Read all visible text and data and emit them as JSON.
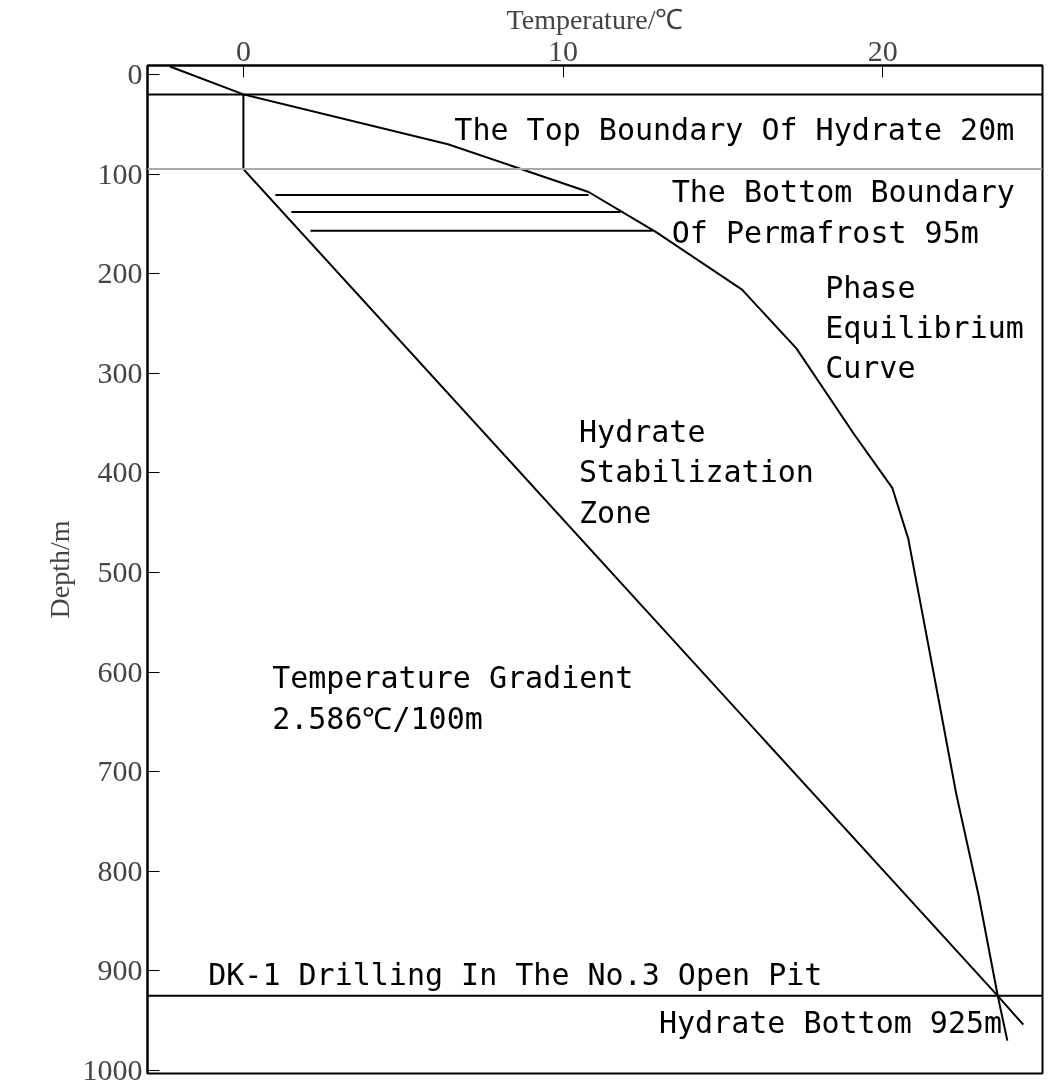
{
  "chart_data": {
    "type": "line",
    "xlabel": "Temperature/℃",
    "ylabel": "Depth/m",
    "xlim": [
      -3,
      25
    ],
    "ylim": [
      1003,
      -9
    ],
    "xticks": [
      0,
      10,
      20
    ],
    "yticks": [
      0,
      100,
      200,
      300,
      400,
      500,
      600,
      700,
      800,
      900,
      1000
    ],
    "grid": false,
    "marker": "none",
    "series": [
      {
        "color": "#000000",
        "x": [
          -2.3,
          0,
          6.4,
          10.8,
          12.9,
          15.6,
          17.3,
          19.1,
          20.3,
          20.8,
          21.1,
          21.7,
          22.3,
          23.0,
          23.6,
          23.9
        ],
        "values": [
          -8,
          20,
          70,
          118,
          158,
          216,
          275,
          361,
          415,
          466,
          517,
          619,
          722,
          824,
          925,
          970
        ]
      },
      {
        "color": "#000000",
        "x": [
          0,
          0,
          23.6,
          24.4
        ],
        "values": [
          20,
          95,
          925,
          954
        ]
      },
      {
        "color": "#000000",
        "x": [
          1.0,
          10.8
        ],
        "values": [
          121,
          121
        ]
      },
      {
        "color": "#000000",
        "x": [
          1.5,
          11.8
        ],
        "values": [
          138,
          138
        ]
      },
      {
        "color": "#000000",
        "x": [
          2.1,
          12.8
        ],
        "values": [
          157,
          157
        ]
      }
    ],
    "ref_lines": [
      {
        "axis": "y",
        "value": 20,
        "color": "#000000"
      },
      {
        "axis": "y",
        "value": 95,
        "color": "#aaaaaa"
      },
      {
        "axis": "y",
        "value": 925,
        "color": "#000000"
      }
    ],
    "annotations": [
      "The Top Boundary Of Hydrate 20m",
      "The Bottom Boundary\nOf Permafrost 95m",
      "Phase\nEquilibrium\nCurve",
      "Hydrate\nStabilization\nZone",
      "Temperature Gradient\n2.586℃/100m",
      "DK-1 Drilling In The No.3 Open Pit",
      "Hydrate Bottom 925m"
    ]
  }
}
